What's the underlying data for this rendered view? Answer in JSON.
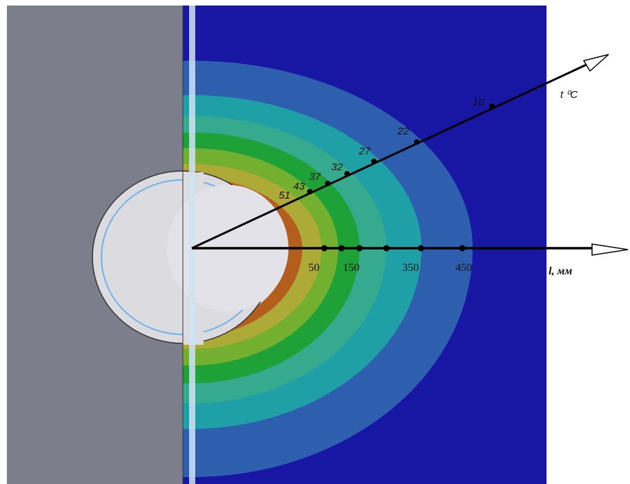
{
  "temperature_axis": {
    "label": "t ⁰C",
    "points": [
      "10",
      "22",
      "27",
      "32",
      "37",
      "43",
      "51"
    ]
  },
  "distance_axis": {
    "label": "l, мм",
    "points": [
      "50",
      "150",
      "350",
      "450"
    ]
  }
}
